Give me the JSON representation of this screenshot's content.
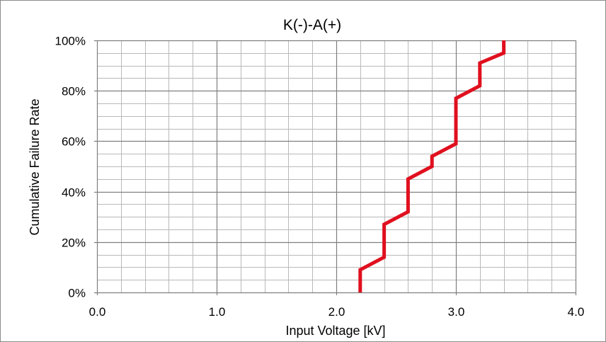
{
  "chart_data": {
    "type": "line",
    "title": "K(-)-A(+)",
    "xlabel": "Input Voltage [kV]",
    "ylabel": "Cumulative Failure Rate",
    "xlim": [
      0,
      4.0
    ],
    "ylim": [
      0,
      100
    ],
    "x_ticks": [
      "0.0",
      "1.0",
      "2.0",
      "3.0",
      "4.0"
    ],
    "y_ticks": [
      "0%",
      "20%",
      "40%",
      "60%",
      "80%",
      "100%"
    ],
    "x_minor_step": 0.2,
    "y_minor_step": 5,
    "grid": true,
    "legend": "none",
    "series": [
      {
        "color": "#e0101f",
        "points": [
          [
            2.2,
            0
          ],
          [
            2.2,
            9
          ],
          [
            2.4,
            14
          ],
          [
            2.4,
            27
          ],
          [
            2.6,
            32
          ],
          [
            2.6,
            45
          ],
          [
            2.8,
            50
          ],
          [
            2.8,
            54
          ],
          [
            3.0,
            59
          ],
          [
            3.0,
            77
          ],
          [
            3.2,
            82
          ],
          [
            3.2,
            91
          ],
          [
            3.4,
            95
          ],
          [
            3.4,
            100
          ]
        ]
      }
    ]
  }
}
